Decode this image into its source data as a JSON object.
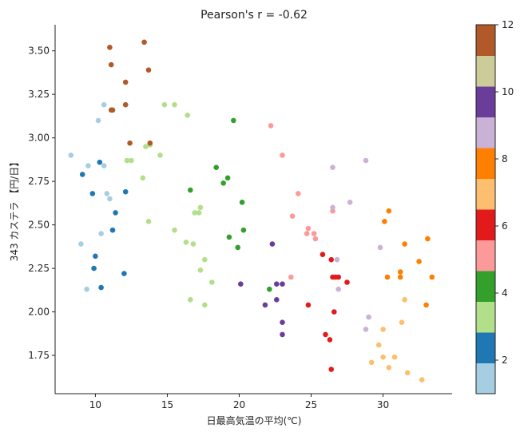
{
  "chart_data": {
    "type": "scatter",
    "title": "Pearson's r = -0.62",
    "xlabel": "日最高気温の平均(℃)",
    "ylabel": "343 カステラ 【円/日】",
    "xlim": [
      7.2,
      34.8
    ],
    "ylim": [
      1.53,
      3.65
    ],
    "xticks": [
      10,
      15,
      20,
      25,
      30
    ],
    "yticks": [
      1.75,
      2.0,
      2.25,
      2.5,
      2.75,
      3.0,
      3.25,
      3.5
    ],
    "ytick_labels": [
      "1.75",
      "2.00",
      "2.25",
      "2.50",
      "2.75",
      "3.00",
      "3.25",
      "3.50"
    ],
    "grid": false,
    "colorbar": {
      "range": [
        1,
        12
      ],
      "ticks": [
        2,
        4,
        6,
        8,
        10,
        12
      ],
      "colors": [
        "#a6cee3",
        "#1f78b4",
        "#b2df8a",
        "#33a02c",
        "#fb9a99",
        "#e31a1c",
        "#fdbf6f",
        "#ff7f00",
        "#cab2d6",
        "#6a3d9a",
        "#cccc99",
        "#b15928"
      ]
    },
    "points": [
      {
        "month": 1,
        "x": 8.3,
        "y": 2.9
      },
      {
        "month": 1,
        "x": 9.5,
        "y": 2.84
      },
      {
        "month": 1,
        "x": 10.6,
        "y": 2.84
      },
      {
        "month": 1,
        "x": 10.2,
        "y": 3.1
      },
      {
        "month": 1,
        "x": 10.6,
        "y": 3.19
      },
      {
        "month": 1,
        "x": 10.8,
        "y": 2.68
      },
      {
        "month": 1,
        "x": 11.0,
        "y": 2.65
      },
      {
        "month": 1,
        "x": 10.4,
        "y": 2.45
      },
      {
        "month": 1,
        "x": 9.0,
        "y": 2.39
      },
      {
        "month": 1,
        "x": 9.4,
        "y": 2.13
      },
      {
        "month": 2,
        "x": 9.1,
        "y": 2.79
      },
      {
        "month": 2,
        "x": 9.8,
        "y": 2.68
      },
      {
        "month": 2,
        "x": 10.3,
        "y": 2.86
      },
      {
        "month": 2,
        "x": 12.1,
        "y": 2.69
      },
      {
        "month": 2,
        "x": 11.4,
        "y": 2.57
      },
      {
        "month": 2,
        "x": 11.2,
        "y": 2.47
      },
      {
        "month": 2,
        "x": 10.0,
        "y": 2.32
      },
      {
        "month": 2,
        "x": 9.9,
        "y": 2.25
      },
      {
        "month": 2,
        "x": 12.0,
        "y": 2.22
      },
      {
        "month": 2,
        "x": 10.4,
        "y": 2.14
      },
      {
        "month": 3,
        "x": 14.8,
        "y": 3.19
      },
      {
        "month": 3,
        "x": 15.5,
        "y": 3.19
      },
      {
        "month": 3,
        "x": 16.4,
        "y": 3.13
      },
      {
        "month": 3,
        "x": 13.8,
        "y": 2.96
      },
      {
        "month": 3,
        "x": 14.5,
        "y": 2.9
      },
      {
        "month": 3,
        "x": 12.2,
        "y": 2.87
      },
      {
        "month": 3,
        "x": 12.5,
        "y": 2.87
      },
      {
        "month": 3,
        "x": 13.5,
        "y": 2.95
      },
      {
        "month": 3,
        "x": 13.3,
        "y": 2.77
      },
      {
        "month": 3,
        "x": 17.3,
        "y": 2.6
      },
      {
        "month": 3,
        "x": 16.9,
        "y": 2.57
      },
      {
        "month": 3,
        "x": 17.2,
        "y": 2.57
      },
      {
        "month": 3,
        "x": 13.7,
        "y": 2.52
      },
      {
        "month": 3,
        "x": 15.5,
        "y": 2.47
      },
      {
        "month": 3,
        "x": 16.3,
        "y": 2.4
      },
      {
        "month": 3,
        "x": 16.8,
        "y": 2.39
      },
      {
        "month": 3,
        "x": 17.6,
        "y": 2.3
      },
      {
        "month": 3,
        "x": 17.3,
        "y": 2.24
      },
      {
        "month": 3,
        "x": 18.1,
        "y": 2.17
      },
      {
        "month": 3,
        "x": 16.6,
        "y": 2.07
      },
      {
        "month": 3,
        "x": 17.6,
        "y": 2.04
      },
      {
        "month": 4,
        "x": 19.6,
        "y": 3.1
      },
      {
        "month": 4,
        "x": 18.4,
        "y": 2.83
      },
      {
        "month": 4,
        "x": 19.2,
        "y": 2.77
      },
      {
        "month": 4,
        "x": 18.9,
        "y": 2.74
      },
      {
        "month": 4,
        "x": 16.6,
        "y": 2.7
      },
      {
        "month": 4,
        "x": 20.2,
        "y": 2.63
      },
      {
        "month": 4,
        "x": 20.3,
        "y": 2.47
      },
      {
        "month": 4,
        "x": 19.3,
        "y": 2.43
      },
      {
        "month": 4,
        "x": 19.9,
        "y": 2.37
      },
      {
        "month": 4,
        "x": 22.1,
        "y": 2.13
      },
      {
        "month": 5,
        "x": 22.2,
        "y": 3.07
      },
      {
        "month": 5,
        "x": 23.0,
        "y": 2.9
      },
      {
        "month": 5,
        "x": 24.1,
        "y": 2.68
      },
      {
        "month": 5,
        "x": 23.7,
        "y": 2.55
      },
      {
        "month": 5,
        "x": 24.8,
        "y": 2.48
      },
      {
        "month": 5,
        "x": 24.7,
        "y": 2.45
      },
      {
        "month": 5,
        "x": 25.2,
        "y": 2.45
      },
      {
        "month": 5,
        "x": 25.3,
        "y": 2.42
      },
      {
        "month": 5,
        "x": 23.6,
        "y": 2.2
      },
      {
        "month": 5,
        "x": 26.5,
        "y": 2.58
      },
      {
        "month": 6,
        "x": 25.8,
        "y": 2.33
      },
      {
        "month": 6,
        "x": 26.4,
        "y": 2.3
      },
      {
        "month": 6,
        "x": 26.5,
        "y": 2.2
      },
      {
        "month": 6,
        "x": 26.7,
        "y": 2.2
      },
      {
        "month": 6,
        "x": 26.9,
        "y": 2.2
      },
      {
        "month": 6,
        "x": 27.5,
        "y": 2.17
      },
      {
        "month": 6,
        "x": 24.8,
        "y": 2.04
      },
      {
        "month": 6,
        "x": 26.6,
        "y": 2.0
      },
      {
        "month": 6,
        "x": 26.0,
        "y": 1.87
      },
      {
        "month": 6,
        "x": 26.3,
        "y": 1.84
      },
      {
        "month": 6,
        "x": 26.4,
        "y": 1.67
      },
      {
        "month": 7,
        "x": 31.5,
        "y": 2.07
      },
      {
        "month": 7,
        "x": 31.3,
        "y": 1.94
      },
      {
        "month": 7,
        "x": 30.0,
        "y": 1.9
      },
      {
        "month": 7,
        "x": 29.7,
        "y": 1.81
      },
      {
        "month": 7,
        "x": 30.0,
        "y": 1.74
      },
      {
        "month": 7,
        "x": 30.8,
        "y": 1.74
      },
      {
        "month": 7,
        "x": 29.2,
        "y": 1.71
      },
      {
        "month": 7,
        "x": 30.4,
        "y": 1.68
      },
      {
        "month": 7,
        "x": 31.7,
        "y": 1.65
      },
      {
        "month": 7,
        "x": 32.7,
        "y": 1.61
      },
      {
        "month": 8,
        "x": 30.4,
        "y": 2.58
      },
      {
        "month": 8,
        "x": 30.1,
        "y": 2.52
      },
      {
        "month": 8,
        "x": 31.5,
        "y": 2.39
      },
      {
        "month": 8,
        "x": 33.1,
        "y": 2.42
      },
      {
        "month": 8,
        "x": 32.5,
        "y": 2.29
      },
      {
        "month": 8,
        "x": 31.2,
        "y": 2.23
      },
      {
        "month": 8,
        "x": 31.2,
        "y": 2.2
      },
      {
        "month": 8,
        "x": 30.3,
        "y": 2.2
      },
      {
        "month": 8,
        "x": 33.4,
        "y": 2.2
      },
      {
        "month": 8,
        "x": 33.0,
        "y": 2.04
      },
      {
        "month": 9,
        "x": 28.8,
        "y": 2.87
      },
      {
        "month": 9,
        "x": 26.5,
        "y": 2.83
      },
      {
        "month": 9,
        "x": 27.7,
        "y": 2.63
      },
      {
        "month": 9,
        "x": 26.5,
        "y": 2.6
      },
      {
        "month": 9,
        "x": 29.8,
        "y": 2.37
      },
      {
        "month": 9,
        "x": 26.8,
        "y": 2.3
      },
      {
        "month": 9,
        "x": 26.9,
        "y": 2.13
      },
      {
        "month": 9,
        "x": 29.0,
        "y": 1.97
      },
      {
        "month": 9,
        "x": 28.8,
        "y": 1.9
      },
      {
        "month": 10,
        "x": 22.3,
        "y": 2.39
      },
      {
        "month": 10,
        "x": 22.6,
        "y": 2.16
      },
      {
        "month": 10,
        "x": 23.0,
        "y": 2.16
      },
      {
        "month": 10,
        "x": 20.1,
        "y": 2.16
      },
      {
        "month": 10,
        "x": 22.6,
        "y": 2.07
      },
      {
        "month": 10,
        "x": 21.8,
        "y": 2.04
      },
      {
        "month": 10,
        "x": 23.0,
        "y": 1.94
      },
      {
        "month": 10,
        "x": 23.0,
        "y": 1.87
      },
      {
        "month": 12,
        "x": 11.0,
        "y": 3.52
      },
      {
        "month": 12,
        "x": 13.4,
        "y": 3.55
      },
      {
        "month": 12,
        "x": 11.1,
        "y": 3.42
      },
      {
        "month": 12,
        "x": 13.7,
        "y": 3.39
      },
      {
        "month": 12,
        "x": 12.1,
        "y": 3.32
      },
      {
        "month": 12,
        "x": 11.1,
        "y": 3.16
      },
      {
        "month": 12,
        "x": 11.2,
        "y": 3.16
      },
      {
        "month": 12,
        "x": 12.1,
        "y": 3.19
      },
      {
        "month": 12,
        "x": 12.4,
        "y": 2.97
      },
      {
        "month": 12,
        "x": 13.8,
        "y": 2.97
      }
    ]
  }
}
